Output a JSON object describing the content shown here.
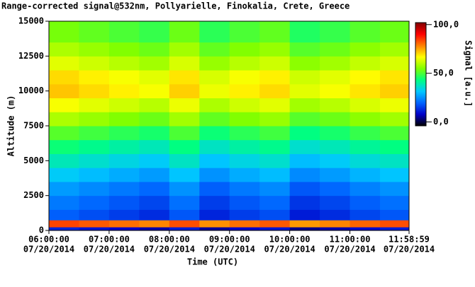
{
  "chart_data": {
    "type": "heatmap",
    "title": "Range-corrected signal@532nm, Pollyarielle, Finokalia, Crete, Greece",
    "x_label": "Time (UTC)",
    "y_label": "Altitude (m)",
    "colorbar_label": "Signal [a.u.]",
    "xlim": [
      6,
      11.983
    ],
    "xticks": [
      {
        "value": 6,
        "label": "06:00:00",
        "date": "07/20/2014"
      },
      {
        "value": 7,
        "label": "07:00:00",
        "date": "07/20/2014"
      },
      {
        "value": 8,
        "label": "08:00:00",
        "date": "07/20/2014"
      },
      {
        "value": 9,
        "label": "09:00:00",
        "date": "07/20/2014"
      },
      {
        "value": 10,
        "label": "10:00:00",
        "date": "07/20/2014"
      },
      {
        "value": 11,
        "label": "11:00:00",
        "date": "07/20/2014"
      },
      {
        "value": 11.983,
        "label": "11:58:59",
        "date": "07/20/2014"
      }
    ],
    "ylim": [
      0,
      15000
    ],
    "yticks": [
      0,
      2500,
      5000,
      7500,
      10000,
      12500,
      15000
    ],
    "x_bins": [
      6,
      6.5,
      7,
      7.5,
      8,
      8.5,
      9,
      9.5,
      10,
      10.5,
      11,
      11.5,
      11.983
    ],
    "y_bins": [
      0,
      250,
      750,
      1500,
      2500,
      3500,
      4500,
      5500,
      6500,
      7500,
      8500,
      9500,
      10500,
      11500,
      12500,
      13500,
      15000
    ],
    "values": [
      [
        12,
        10,
        8,
        6,
        11,
        5,
        8,
        10,
        4,
        6,
        9,
        11
      ],
      [
        84,
        82,
        80,
        78,
        83,
        77,
        80,
        82,
        76,
        78,
        81,
        83
      ],
      [
        19,
        17,
        15,
        13,
        18,
        12,
        15,
        17,
        11,
        13,
        16,
        18
      ],
      [
        22,
        20,
        18,
        16,
        21,
        15,
        18,
        20,
        14,
        16,
        19,
        21
      ],
      [
        26,
        24,
        22,
        20,
        25,
        19,
        22,
        24,
        18,
        20,
        23,
        25
      ],
      [
        32,
        30,
        28,
        26,
        31,
        25,
        28,
        30,
        24,
        26,
        29,
        31
      ],
      [
        38,
        36,
        34,
        32,
        37,
        31,
        34,
        36,
        30,
        32,
        35,
        37
      ],
      [
        44,
        42,
        40,
        38,
        43,
        37,
        40,
        42,
        36,
        38,
        41,
        43
      ],
      [
        51,
        49,
        47,
        45,
        50,
        44,
        47,
        49,
        43,
        45,
        48,
        50
      ],
      [
        59,
        57,
        55,
        53,
        58,
        52,
        55,
        57,
        51,
        53,
        56,
        58
      ],
      [
        66,
        64,
        62,
        60,
        65,
        59,
        62,
        64,
        58,
        60,
        63,
        65
      ],
      [
        72,
        70,
        68,
        66,
        71,
        65,
        68,
        70,
        64,
        66,
        69,
        71
      ],
      [
        70,
        68,
        66,
        64,
        69,
        63,
        66,
        68,
        62,
        64,
        67,
        69
      ],
      [
        64,
        62,
        60,
        58,
        63,
        57,
        60,
        62,
        56,
        58,
        61,
        63
      ],
      [
        59,
        57,
        55,
        53,
        58,
        52,
        55,
        57,
        51,
        53,
        56,
        58
      ],
      [
        54,
        52,
        50,
        48,
        53,
        47,
        50,
        52,
        46,
        48,
        51,
        53
      ]
    ],
    "clim": [
      -4,
      102
    ],
    "cticks": [
      {
        "value": 0,
        "label": "0,0"
      },
      {
        "value": 50,
        "label": "50,0"
      },
      {
        "value": 100,
        "label": "100,0"
      }
    ],
    "colormap": [
      "#000000",
      "#0000c8",
      "#0064ff",
      "#00c8ff",
      "#00ff80",
      "#80ff00",
      "#ffff00",
      "#ff8000",
      "#ff0000",
      "#800000"
    ]
  }
}
